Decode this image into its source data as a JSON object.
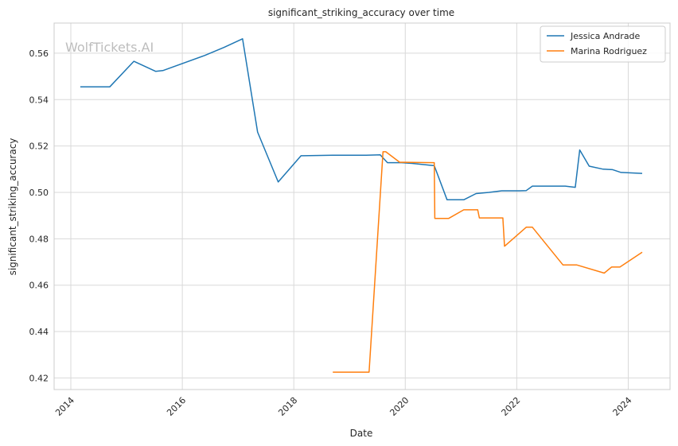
{
  "chart_data": {
    "type": "line",
    "title": "significant_striking_accuracy over time",
    "xlabel": "Date",
    "ylabel": "significant_striking_accuracy",
    "watermark": "WolfTickets.AI",
    "xlim": [
      2013.7,
      2024.75
    ],
    "ylim": [
      0.415,
      0.573
    ],
    "x_ticks": [
      2014,
      2016,
      2018,
      2020,
      2022,
      2024
    ],
    "x_tick_labels": [
      "2014",
      "2016",
      "2018",
      "2020",
      "2022",
      "2024"
    ],
    "y_ticks": [
      0.42,
      0.44,
      0.46,
      0.48,
      0.5,
      0.52,
      0.54,
      0.56
    ],
    "y_tick_labels": [
      "0.42",
      "0.44",
      "0.46",
      "0.48",
      "0.50",
      "0.52",
      "0.54",
      "0.56"
    ],
    "grid": true,
    "legend_position": "top-right",
    "series": [
      {
        "name": "Jessica Andrade",
        "color": "#1f77b4",
        "x": [
          2014.17,
          2014.7,
          2015.13,
          2015.52,
          2015.65,
          2016.4,
          2016.75,
          2017.08,
          2017.35,
          2017.72,
          2018.13,
          2018.7,
          2019.0,
          2019.3,
          2019.55,
          2019.68,
          2019.93,
          2020.12,
          2020.52,
          2020.75,
          2021.05,
          2021.27,
          2021.5,
          2021.73,
          2022.05,
          2022.17,
          2022.28,
          2022.87,
          2023.05,
          2023.13,
          2023.3,
          2023.55,
          2023.72,
          2023.87,
          2024.25
        ],
        "y": [
          0.5455,
          0.5455,
          0.5565,
          0.5522,
          0.5525,
          0.559,
          0.5625,
          0.5662,
          0.526,
          0.5045,
          0.5158,
          0.516,
          0.516,
          0.516,
          0.5162,
          0.5128,
          0.5128,
          0.5125,
          0.5115,
          0.4968,
          0.4968,
          0.4995,
          0.5,
          0.5007,
          0.5007,
          0.5008,
          0.5027,
          0.5027,
          0.5022,
          0.5183,
          0.5113,
          0.51,
          0.5098,
          0.5086,
          0.5082
        ]
      },
      {
        "name": "Marina Rodriguez",
        "color": "#ff7f0e",
        "x": [
          2018.7,
          2019.2,
          2019.35,
          2019.6,
          2019.65,
          2019.9,
          2020.52,
          2020.53,
          2020.78,
          2021.05,
          2021.3,
          2021.33,
          2021.75,
          2021.78,
          2022.17,
          2022.28,
          2022.83,
          2023.08,
          2023.57,
          2023.7,
          2023.85,
          2024.25
        ],
        "y": [
          0.4225,
          0.4225,
          0.4225,
          0.5175,
          0.5175,
          0.513,
          0.5128,
          0.4888,
          0.4888,
          0.4925,
          0.4925,
          0.489,
          0.489,
          0.4768,
          0.485,
          0.485,
          0.4687,
          0.4687,
          0.4652,
          0.4678,
          0.4678,
          0.4742
        ]
      }
    ]
  }
}
